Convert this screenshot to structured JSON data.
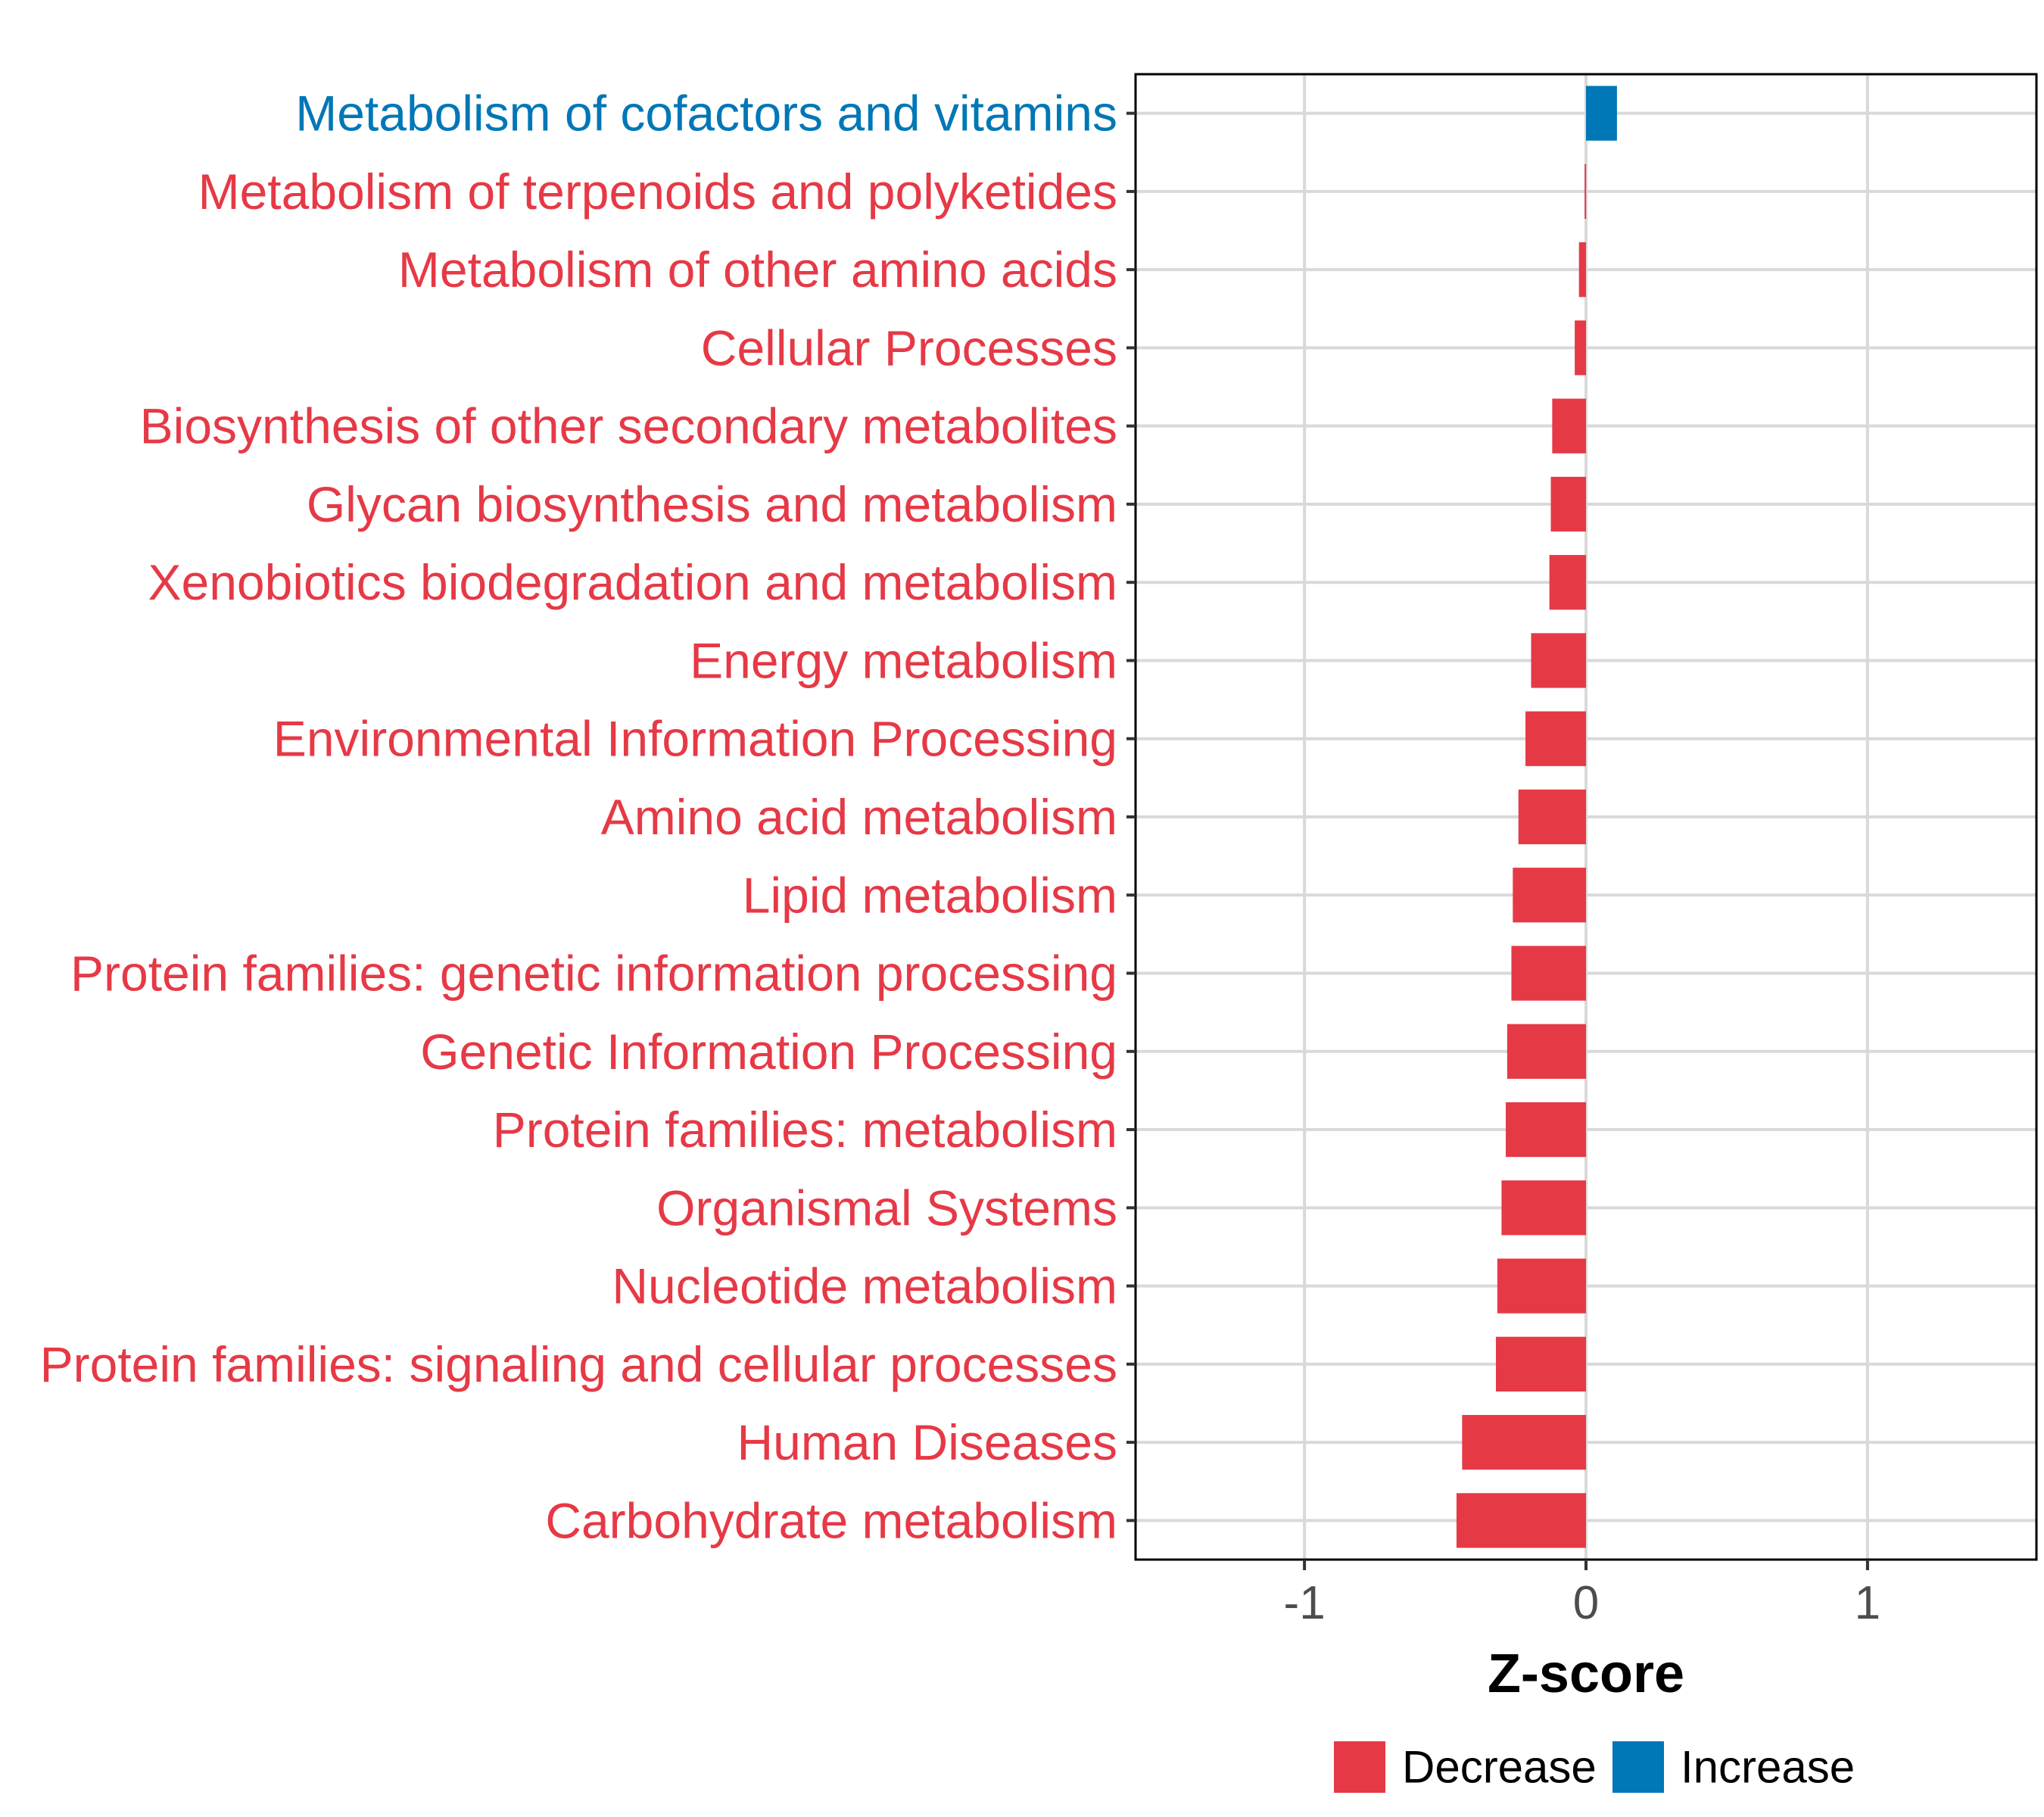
{
  "chart_data": {
    "type": "bar",
    "orientation": "horizontal",
    "xlabel": "Z-score",
    "xlim": [
      -1.6,
      1.6
    ],
    "xticks": [
      -1,
      0,
      1
    ],
    "xtick_labels": [
      "-1",
      "0",
      "1"
    ],
    "categories": [
      "Metabolism of cofactors and vitamins",
      "Metabolism of terpenoids and polyketides",
      "Metabolism of other amino acids",
      "Cellular Processes",
      "Biosynthesis of other secondary metabolites",
      "Glycan biosynthesis and metabolism",
      "Xenobiotics biodegradation and metabolism",
      "Energy metabolism",
      "Environmental Information Processing",
      "Amino acid metabolism",
      "Lipid metabolism",
      "Protein families: genetic information processing",
      "Genetic Information Processing",
      "Protein families: metabolism",
      "Organismal Systems",
      "Nucleotide metabolism",
      "Protein families: signaling and cellular processes",
      "Human Diseases",
      "Carbohydrate metabolism"
    ],
    "values": [
      0.11,
      -0.005,
      -0.025,
      -0.04,
      -0.12,
      -0.125,
      -0.13,
      -0.195,
      -0.215,
      -0.24,
      -0.26,
      -0.265,
      -0.28,
      -0.285,
      -0.3,
      -0.315,
      -0.32,
      -0.44,
      -0.46
    ],
    "direction": [
      "Increase",
      "Decrease",
      "Decrease",
      "Decrease",
      "Decrease",
      "Decrease",
      "Decrease",
      "Decrease",
      "Decrease",
      "Decrease",
      "Decrease",
      "Decrease",
      "Decrease",
      "Decrease",
      "Decrease",
      "Decrease",
      "Decrease",
      "Decrease",
      "Decrease"
    ],
    "legend": {
      "placement": "bottom",
      "entries": [
        {
          "label": "Decrease",
          "color": "#e63946"
        },
        {
          "label": "Increase",
          "color": "#0077b6"
        }
      ]
    },
    "grid": true
  }
}
